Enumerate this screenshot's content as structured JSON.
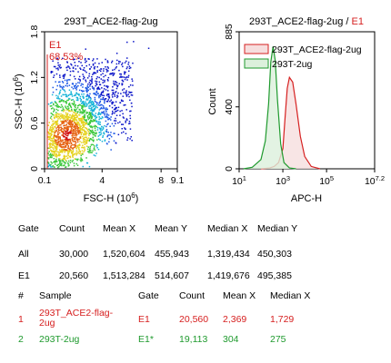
{
  "colors": {
    "red": "#d62020",
    "green": "#1f9a2e",
    "density_scale": [
      "#0a14c8",
      "#1e5ae6",
      "#18b4d8",
      "#3cc83c",
      "#e6d21e",
      "#e66414",
      "#d21414"
    ]
  },
  "chart_data": [
    {
      "type": "scatter",
      "title": "293T_ACE2-flag-2ug",
      "xlabel": "FSC-H (10^6)",
      "ylabel": "SSC-H (10^6)",
      "xlim": [
        0.1,
        9.1
      ],
      "ylim": [
        0,
        1.8
      ],
      "x_ticks": [
        {
          "value": 0.1,
          "label": "0.1"
        },
        {
          "value": 4,
          "label": "4"
        },
        {
          "value": 8,
          "label": "8"
        },
        {
          "value": 9.1,
          "label": "9.1"
        }
      ],
      "y_ticks": [
        {
          "value": 0,
          "label": "0"
        },
        {
          "value": 0.6,
          "label": "0.6"
        },
        {
          "value": 1.2,
          "label": "1.2"
        },
        {
          "value": 1.8,
          "label": "1.8"
        }
      ],
      "density_center": {
        "x": 1.6,
        "y": 0.45
      },
      "gate": {
        "name": "E1",
        "percent": "68.53%"
      }
    },
    {
      "type": "area",
      "title_main": "293T_ACE2-flag-2ug",
      "title_gate": "E1",
      "xlabel": "APC-H",
      "ylabel": "Count",
      "x_scale": "log",
      "xlim_log10": [
        1,
        7.2
      ],
      "ylim": [
        0,
        885
      ],
      "x_ticks": [
        {
          "value": 1,
          "label": "10^1"
        },
        {
          "value": 3,
          "label": "10^3"
        },
        {
          "value": 5,
          "label": "10^5"
        },
        {
          "value": 7.2,
          "label": "10^7.2"
        }
      ],
      "y_ticks": [
        {
          "value": 0,
          "label": "0"
        },
        {
          "value": 400,
          "label": "400"
        },
        {
          "value": 885,
          "label": "885"
        }
      ],
      "legend_position": "top",
      "series": [
        {
          "name": "293T_ACE2-flag-2ug",
          "color": "#d62020",
          "fill": "#f6dede",
          "x_log10": [
            2.0,
            2.4,
            2.6,
            2.8,
            3.0,
            3.1,
            3.2,
            3.3,
            3.45,
            3.6,
            3.8,
            4.0,
            4.3,
            4.7
          ],
          "y": [
            0,
            5,
            15,
            40,
            130,
            330,
            520,
            590,
            560,
            420,
            210,
            80,
            15,
            0
          ]
        },
        {
          "name": "293T-2ug",
          "color": "#1f9a2e",
          "fill": "#dcf0dc",
          "x_log10": [
            1.2,
            1.6,
            2.0,
            2.2,
            2.35,
            2.45,
            2.55,
            2.65,
            2.75,
            2.9,
            3.05,
            3.3,
            3.6
          ],
          "y": [
            0,
            10,
            60,
            180,
            420,
            690,
            790,
            700,
            450,
            160,
            40,
            5,
            0
          ]
        }
      ]
    }
  ],
  "stats_table": {
    "headers": [
      "Gate",
      "Count",
      "Mean X",
      "Mean Y",
      "Median X",
      "Median Y"
    ],
    "rows": [
      [
        "All",
        "30,000",
        "1,520,604",
        "455,943",
        "1,319,434",
        "450,303"
      ],
      [
        "E1",
        "20,560",
        "1,513,284",
        "514,607",
        "1,419,676",
        "495,385"
      ]
    ]
  },
  "sample_table": {
    "headers": [
      "#",
      "Sample",
      "Gate",
      "Count",
      "Mean X",
      "Median X"
    ],
    "rows": [
      {
        "cells": [
          "1",
          "293T_ACE2-flag-2ug",
          "E1",
          "20,560",
          "2,369",
          "1,729"
        ],
        "color": "#d62020"
      },
      {
        "cells": [
          "2",
          "293T-2ug",
          "E1*",
          "19,113",
          "304",
          "275"
        ],
        "color": "#1f9a2e"
      }
    ]
  }
}
